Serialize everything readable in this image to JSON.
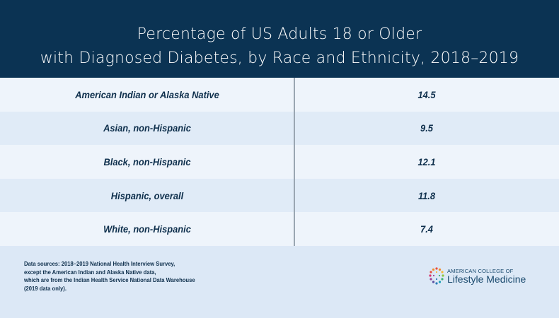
{
  "title": {
    "line1": "Percentage of US Adults 18 or Older",
    "line2": "with Diagnosed Diabetes, by Race and Ethnicity, 2018–2019"
  },
  "rows": [
    {
      "group": "American Indian or Alaska Native",
      "value": "14.5"
    },
    {
      "group": "Asian, non-Hispanic",
      "value": "9.5"
    },
    {
      "group": "Black, non-Hispanic",
      "value": "12.1"
    },
    {
      "group": "Hispanic, overall",
      "value": "11.8"
    },
    {
      "group": "White, non-Hispanic",
      "value": "7.4"
    }
  ],
  "footer": {
    "source_lines": [
      "Data sources: 2018–2019 National Health Interview Survey,",
      "except the American Indian and Alaska Native data,",
      "which are from the Indian Health Service National Data Warehouse",
      "(2019 data only)."
    ],
    "logo": {
      "line1": "AMERICAN COLLEGE OF",
      "line2": "Lifestyle Medicine"
    }
  },
  "colors": {
    "header": "#0b3353",
    "text": "#0e2f4c",
    "footer_bg": "#dce8f6"
  }
}
